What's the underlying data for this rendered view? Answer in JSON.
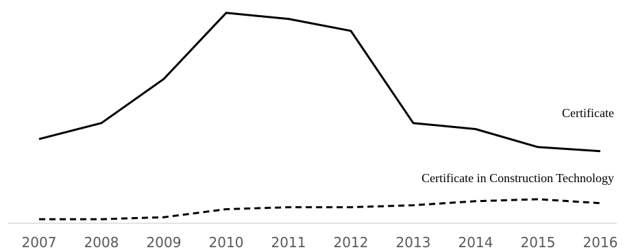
{
  "chart_data": {
    "type": "line",
    "title": "",
    "xlabel": "",
    "ylabel": "",
    "x": [
      "2007",
      "2008",
      "2009",
      "2010",
      "2011",
      "2012",
      "2013",
      "2014",
      "2015",
      "2016"
    ],
    "series": [
      {
        "name": "Certificate",
        "style": "solid",
        "color": "#000000",
        "values": [
          40,
          48,
          70,
          103,
          100,
          94,
          48,
          45,
          36,
          34
        ]
      },
      {
        "name": "Certificate in Construction Technology",
        "style": "dashed",
        "color": "#000000",
        "values": [
          0,
          0,
          1,
          5,
          6,
          6,
          7,
          9,
          10,
          8
        ]
      }
    ],
    "ylim": [
      -2,
      106
    ],
    "grid": false,
    "legend": "none",
    "axis_color": "#d9d9d9",
    "tick_color": "#595959"
  }
}
